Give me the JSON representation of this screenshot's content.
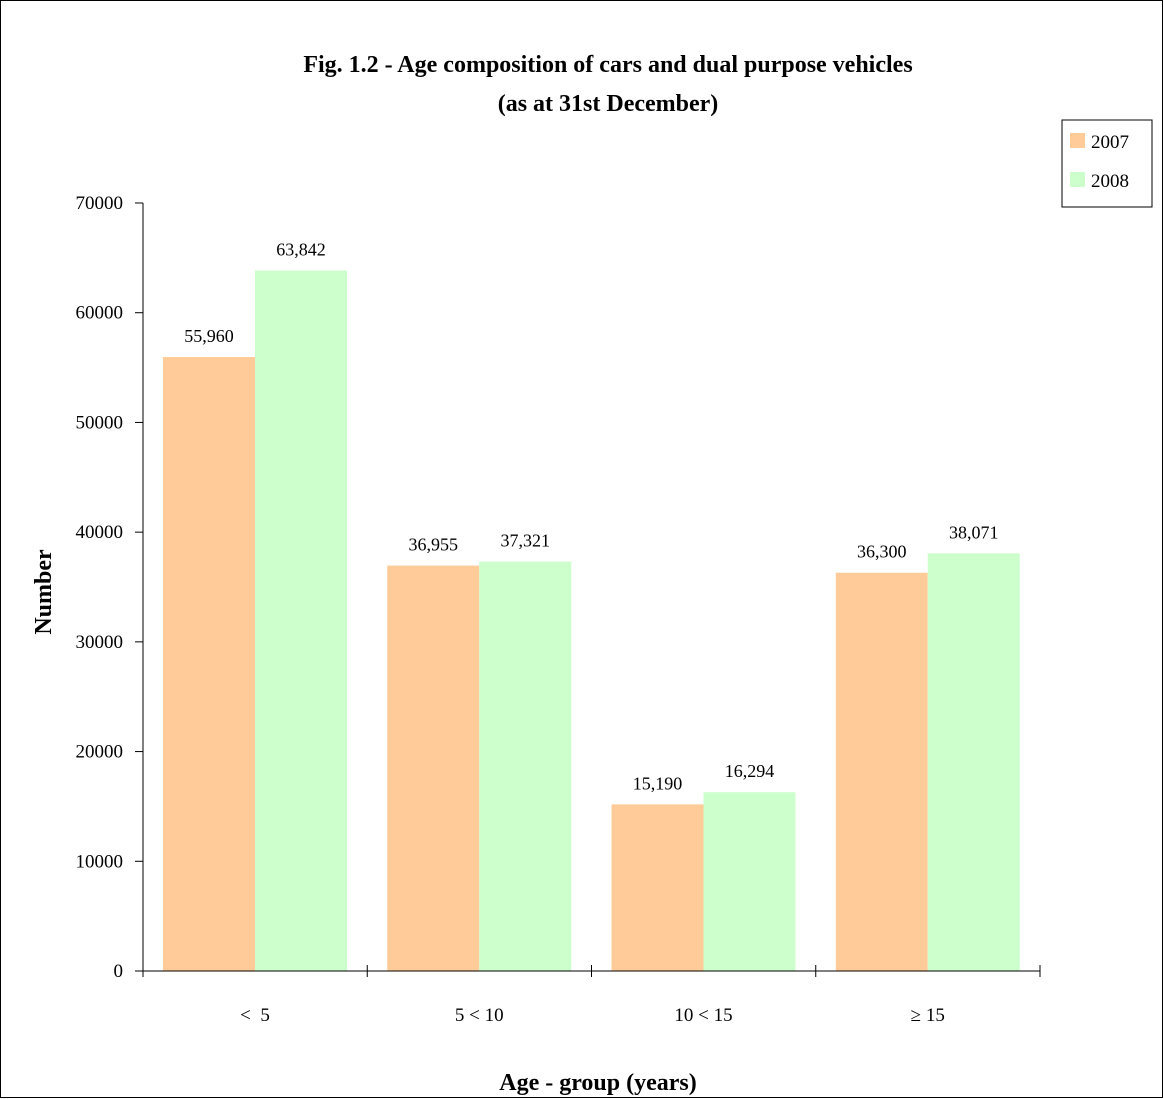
{
  "chart_data": {
    "type": "bar",
    "title": "Fig. 1.2 -  Age composition of cars and dual purpose vehicles",
    "subtitle": "(as at 31st  December)",
    "xlabel": "Age - group (years)",
    "ylabel": "Number",
    "categories": [
      "<  5",
      "5 < 10",
      "10 < 15",
      "≥ 15"
    ],
    "series": [
      {
        "name": "2007",
        "color": "#FFCC99",
        "values": [
          55960,
          36955,
          15190,
          36300
        ],
        "labels": [
          "55,960",
          "36,955",
          "15,190",
          "36,300"
        ]
      },
      {
        "name": "2008",
        "color": "#CCFFCC",
        "values": [
          63842,
          37321,
          16294,
          38071
        ],
        "labels": [
          "63,842",
          "37,321",
          "16,294",
          "38,071"
        ]
      }
    ],
    "ylim": [
      0,
      70000
    ],
    "yticks": [
      0,
      10000,
      20000,
      30000,
      40000,
      50000,
      60000,
      70000
    ],
    "ytick_labels": [
      "0",
      "10000",
      "20000",
      "30000",
      "40000",
      "50000",
      "60000",
      "70000"
    ],
    "grid": false,
    "legend_position": "top-right"
  }
}
